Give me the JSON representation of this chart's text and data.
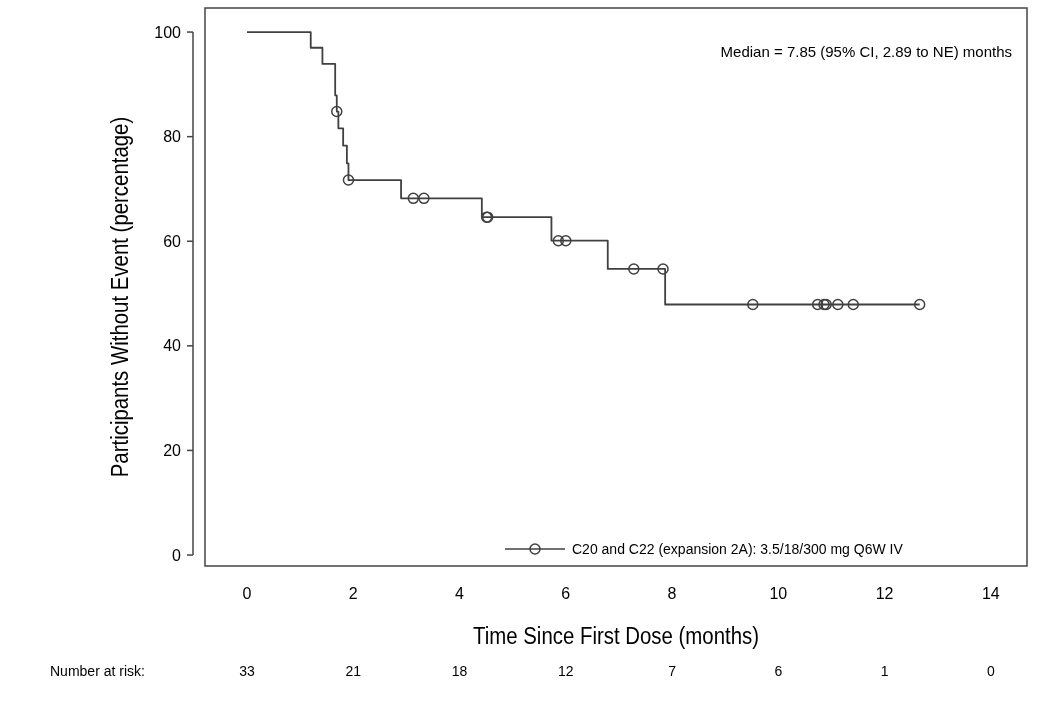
{
  "chart_data": {
    "type": "step",
    "xlabel": "Time Since First Dose (months)",
    "ylabel": "Participants Without Event (percentage)",
    "xlim": [
      -0.79,
      14.68
    ],
    "ylim": [
      -2.1,
      104.6
    ],
    "xticks": [
      0,
      2,
      4,
      6,
      8,
      10,
      12,
      14
    ],
    "yticks": [
      0,
      20,
      40,
      60,
      80,
      100
    ],
    "series": [
      {
        "name": "C20 and C22 (expansion 2A): 3.5/18/300 mg Q6W IV",
        "color": "#404040",
        "marker": "none",
        "x": [
          0,
          1.2,
          1.42,
          1.66,
          1.69,
          1.72,
          1.81,
          1.88,
          1.91,
          2.9,
          4.42,
          5.73,
          6.79,
          7.87,
          12.66
        ],
        "values": [
          100,
          97.0,
          93.9,
          87.9,
          84.8,
          81.6,
          78.3,
          74.9,
          71.7,
          68.2,
          64.6,
          60.1,
          54.7,
          47.9,
          47.9
        ]
      },
      {
        "type": "scatter",
        "color": "#404040",
        "marker": "circle",
        "x": [
          1.69,
          1.91,
          3.13,
          3.33,
          4.51,
          4.53,
          5.86,
          6.0,
          7.28,
          7.83,
          9.52,
          10.74,
          10.86,
          10.9,
          11.12,
          11.41,
          12.66
        ],
        "values": [
          84.8,
          71.7,
          68.2,
          68.2,
          64.6,
          64.6,
          60.1,
          60.1,
          54.7,
          54.7,
          47.9,
          47.9,
          47.9,
          47.9,
          47.9,
          47.9,
          47.9
        ]
      }
    ],
    "legend": "bottom right",
    "grid": false,
    "annotations": [
      "Median = 7.85 (95% CI, 2.89 to NE) months",
      "Number at risk:",
      "33",
      "21",
      "18",
      "12",
      "7",
      "6",
      "1",
      "0"
    ]
  }
}
